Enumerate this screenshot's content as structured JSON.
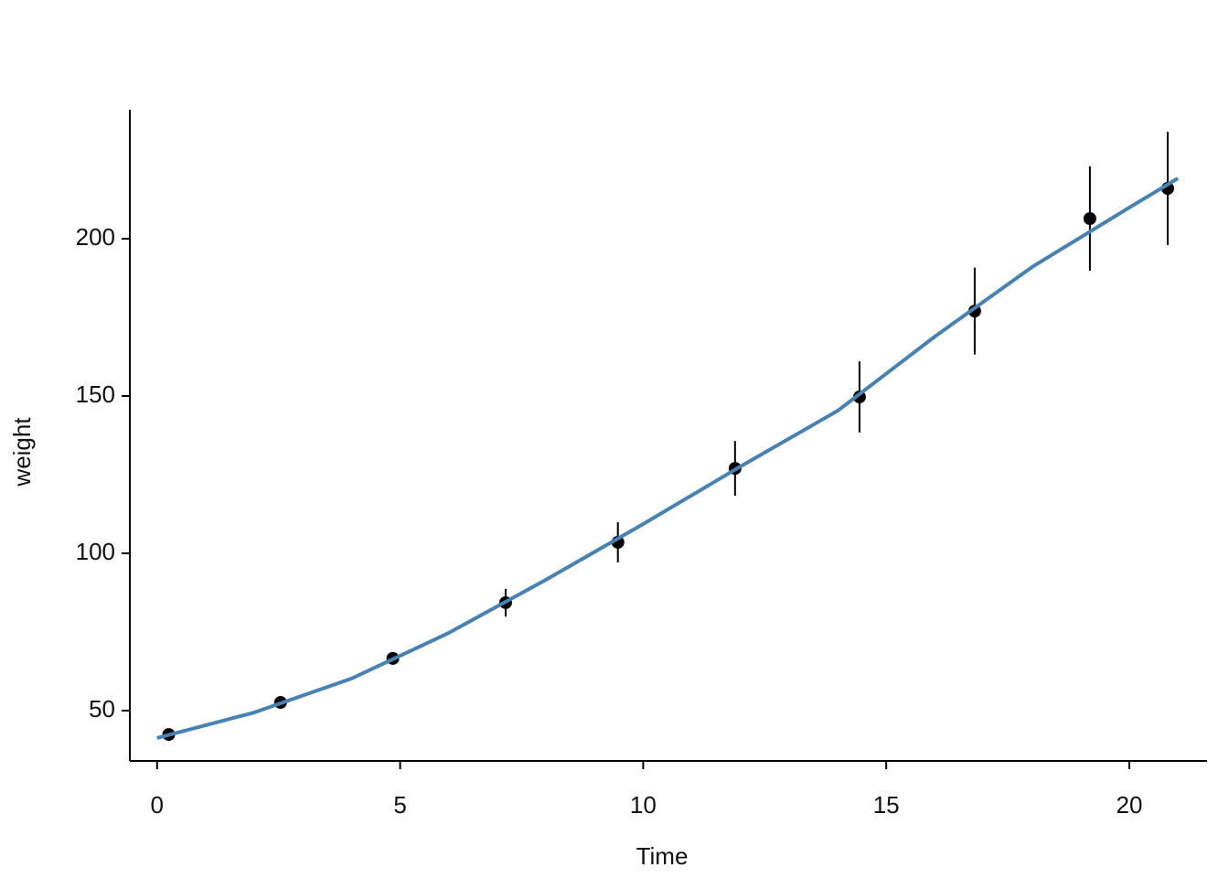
{
  "chart_data": {
    "type": "scatter",
    "x_label": "Time",
    "y_label": "weight",
    "xlim": [
      -0.56,
      21.6
    ],
    "ylim": [
      34,
      241
    ],
    "xticks": [
      0,
      5,
      10,
      15,
      20
    ],
    "yticks": [
      50,
      100,
      150,
      200
    ],
    "series": [
      {
        "color": "#000000",
        "x": [
          0.24,
          2.54,
          4.85,
          7.17,
          9.48,
          11.89,
          14.45,
          16.82,
          19.19,
          20.79
        ],
        "values": [
          42.4,
          52.6,
          66.6,
          84.3,
          103.5,
          127,
          149.7,
          177,
          206.4,
          216
        ],
        "errors": [
          0.6,
          1,
          2,
          4.4,
          6.4,
          8.7,
          11.3,
          13.8,
          16.6,
          18
        ]
      },
      {
        "type": "line",
        "color": "#4682b4",
        "x": [
          0,
          2,
          4,
          6,
          8,
          10,
          12,
          14,
          16,
          18,
          20,
          21
        ],
        "values": [
          41.3,
          49.4,
          60.2,
          74.7,
          91.6,
          109.3,
          127.6,
          145.3,
          168.9,
          191,
          209.9,
          219.2
        ]
      }
    ]
  }
}
